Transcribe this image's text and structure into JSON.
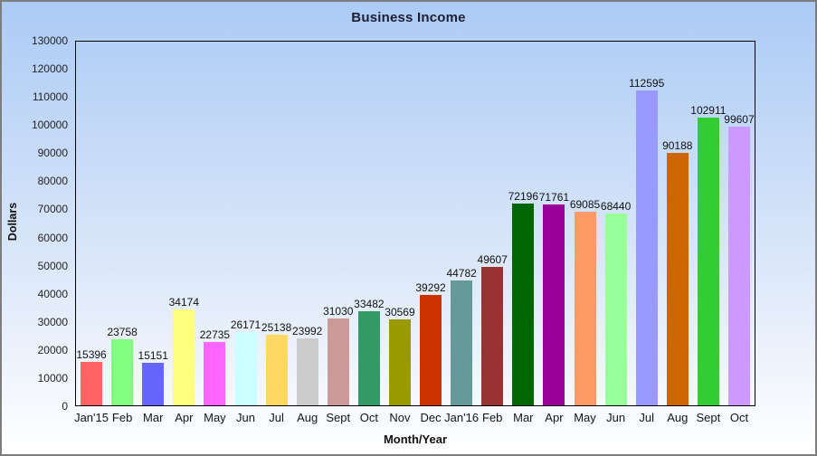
{
  "chart_data": {
    "type": "bar",
    "title": "Business Income",
    "xlabel": "Month/Year",
    "ylabel": "Dollars",
    "ylim": [
      0,
      130000
    ],
    "ytick_step": 10000,
    "grid": false,
    "legend": "none",
    "value_labels_shown": true,
    "categories": [
      "Jan'15",
      "Feb",
      "Mar",
      "Apr",
      "May",
      "Jun",
      "Jul",
      "Aug",
      "Sept",
      "Oct",
      "Nov",
      "Dec",
      "Jan'16",
      "Feb",
      "Mar",
      "Apr",
      "May",
      "Jun",
      "Jul",
      "Aug",
      "Sept",
      "Oct"
    ],
    "values": [
      15396,
      23758,
      15151,
      34174,
      22735,
      26171,
      25138,
      23992,
      31030,
      33482,
      30569,
      39292,
      44782,
      49607,
      72196,
      71761,
      69085,
      68440,
      112595,
      90188,
      102911,
      99607
    ],
    "bar_colors": [
      "#FF6363",
      "#80FF80",
      "#6666FF",
      "#FFFF80",
      "#FF66FF",
      "#CCFFFF",
      "#FFD762",
      "#CCCCCC",
      "#CC9999",
      "#339966",
      "#999900",
      "#CC3300",
      "#669999",
      "#993333",
      "#006600",
      "#990099",
      "#FF9966",
      "#99FF99",
      "#9999FF",
      "#CC6600",
      "#33CC33",
      "#CC99FF"
    ],
    "colors": {
      "background_top": "#abcbf5",
      "background_bottom": "#ffffff",
      "frame_border": "#7d7d7d",
      "plot_border": "#000000",
      "text": "#111111"
    }
  }
}
